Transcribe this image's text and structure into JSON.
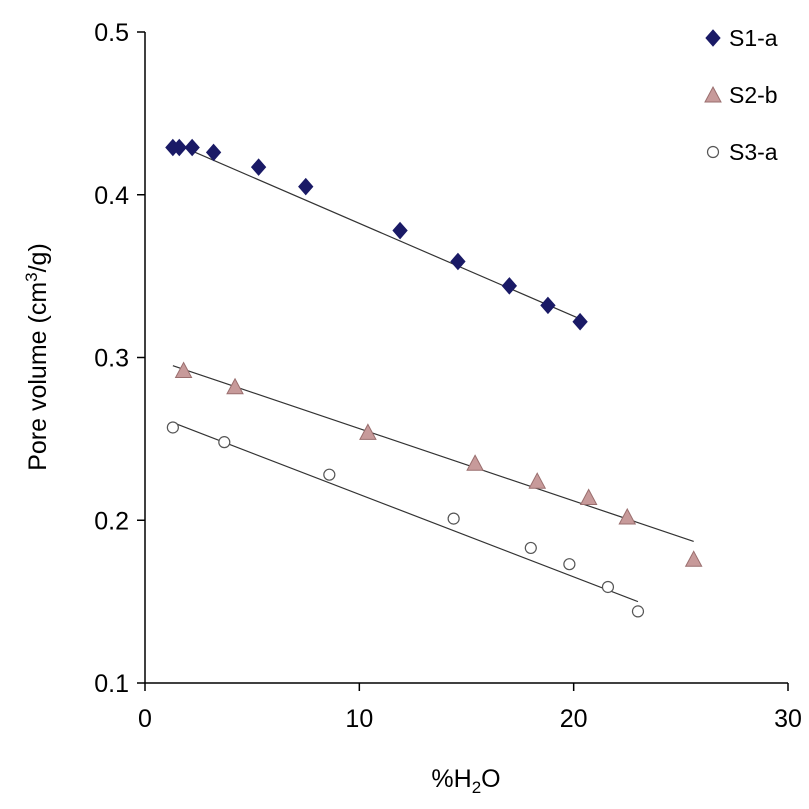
{
  "chart_data": {
    "type": "scatter",
    "xlabel": {
      "prefix": "%H",
      "sub": "2",
      "suffix": "O"
    },
    "ylabel": {
      "prefix": "Pore volume (cm",
      "sup": "3",
      "suffix": "/g)"
    },
    "xlim": [
      0,
      30
    ],
    "ylim": [
      0.1,
      0.5
    ],
    "xticks": [
      "0",
      "10",
      "20",
      "30"
    ],
    "yticks": [
      "0.1",
      "0.2",
      "0.3",
      "0.4",
      "0.5"
    ],
    "grid": false,
    "legend_position": "top-right",
    "series": [
      {
        "name": "S1-a",
        "marker": "diamond",
        "color": "#1a1a66",
        "x": [
          1.3,
          1.6,
          2.2,
          3.2,
          5.3,
          7.5,
          11.9,
          14.6,
          17.0,
          18.8,
          20.3
        ],
        "y": [
          0.429,
          0.429,
          0.429,
          0.426,
          0.417,
          0.405,
          0.378,
          0.359,
          0.344,
          0.332,
          0.322
        ],
        "trend": {
          "x1": 1.3,
          "y1": 0.432,
          "x2": 20.6,
          "y2": 0.322
        }
      },
      {
        "name": "S2-b",
        "marker": "triangle",
        "color": "#c79a9a",
        "x": [
          1.8,
          4.2,
          10.4,
          15.4,
          18.3,
          20.7,
          22.5,
          25.6
        ],
        "y": [
          0.292,
          0.282,
          0.254,
          0.235,
          0.224,
          0.214,
          0.202,
          0.176
        ],
        "trend": {
          "x1": 1.3,
          "y1": 0.295,
          "x2": 25.6,
          "y2": 0.187
        }
      },
      {
        "name": "S3-a",
        "marker": "circle",
        "color": "#555555",
        "x": [
          1.3,
          3.7,
          8.6,
          14.4,
          18.0,
          19.8,
          21.6,
          23.0
        ],
        "y": [
          0.257,
          0.248,
          0.228,
          0.201,
          0.183,
          0.173,
          0.159,
          0.144
        ],
        "trend": {
          "x1": 1.3,
          "y1": 0.26,
          "x2": 23.0,
          "y2": 0.15
        }
      }
    ]
  }
}
